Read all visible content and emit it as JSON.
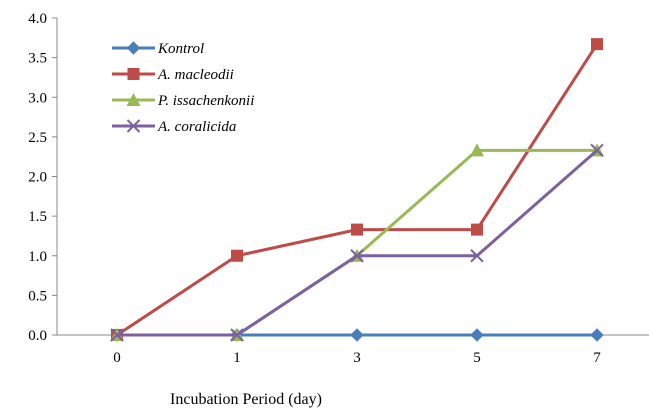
{
  "chart_data": {
    "type": "line",
    "title": "",
    "xlabel": "Incubation Period (day)",
    "ylabel": "",
    "categories": [
      "0",
      "1",
      "3",
      "5",
      "7"
    ],
    "ylim": [
      0,
      4.0
    ],
    "yticks": [
      "0.0",
      "0.5",
      "1.0",
      "1.5",
      "2.0",
      "2.5",
      "3.0",
      "3.5",
      "4.0"
    ],
    "grid": false,
    "legend_position": "top-left",
    "series": [
      {
        "name": "Kontrol",
        "values": [
          0,
          0,
          0,
          0,
          0
        ],
        "color": "#4A7EBB",
        "marker": "diamond"
      },
      {
        "name": "A. macleodii",
        "values": [
          0,
          1.0,
          1.33,
          1.33,
          3.67
        ],
        "color": "#BE4B48",
        "marker": "square"
      },
      {
        "name": "P. issachenkonii",
        "values": [
          0,
          0,
          1.0,
          2.33,
          2.33
        ],
        "color": "#98B954",
        "marker": "triangle"
      },
      {
        "name": "A. coralicida",
        "values": [
          0,
          0,
          1.0,
          1.0,
          2.33
        ],
        "color": "#7D60A0",
        "marker": "x"
      }
    ]
  }
}
